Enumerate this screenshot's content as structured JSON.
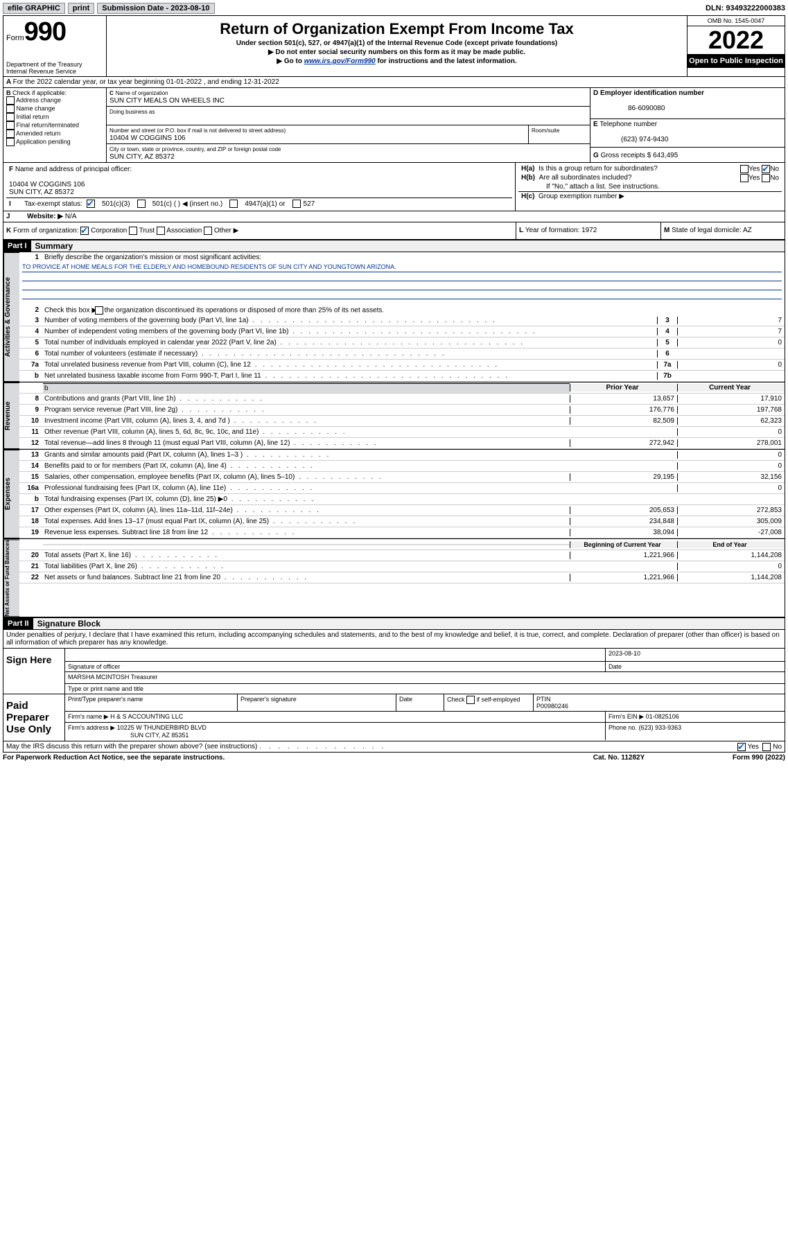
{
  "topbar": {
    "efile": "efile GRAPHIC",
    "print": "print",
    "submission_label": "Submission Date - 2023-08-10",
    "dln": "DLN: 93493222000383"
  },
  "header": {
    "form_prefix": "Form",
    "form_number": "990",
    "dept": "Department of the Treasury",
    "irs": "Internal Revenue Service",
    "title": "Return of Organization Exempt From Income Tax",
    "sub1": "Under section 501(c), 527, or 4947(a)(1) of the Internal Revenue Code (except private foundations)",
    "sub2": "Do not enter social security numbers on this form as it may be made public.",
    "sub3_pre": "Go to ",
    "sub3_link": "www.irs.gov/Form990",
    "sub3_post": " for instructions and the latest information.",
    "omb": "OMB No. 1545-0047",
    "year": "2022",
    "open_public": "Open to Public Inspection"
  },
  "A": {
    "text": "For the 2022 calendar year, or tax year beginning 01-01-2022    , and ending 12-31-2022"
  },
  "B": {
    "title": "Check if applicable:",
    "opts": [
      "Address change",
      "Name change",
      "Initial return",
      "Final return/terminated",
      "Amended return",
      "Application pending"
    ]
  },
  "C": {
    "name_label": "Name of organization",
    "name": "SUN CITY MEALS ON WHEELS INC",
    "dba_label": "Doing business as",
    "addr_label": "Number and street (or P.O. box if mail is not delivered to street address)",
    "room_label": "Room/suite",
    "addr": "10404 W COGGINS 106",
    "city_label": "City or town, state or province, country, and ZIP or foreign postal code",
    "city": "SUN CITY, AZ  85372"
  },
  "D": {
    "label": "Employer identification number",
    "value": "86-6090080"
  },
  "E": {
    "label": "Telephone number",
    "value": "(623) 974-9430"
  },
  "G": {
    "label": "Gross receipts $",
    "value": "643,495"
  },
  "F": {
    "label": "Name and address of principal officer:",
    "addr1": "10404 W COGGINS 106",
    "addr2": "SUN CITY, AZ  85372"
  },
  "H": {
    "a": "Is this a group return for subordinates?",
    "b": "Are all subordinates included?",
    "b_note": "If \"No,\" attach a list. See instructions.",
    "c": "Group exemption number ▶"
  },
  "I": {
    "label": "Tax-exempt status:",
    "opts": [
      "501(c)(3)",
      "501(c) (   ) ◀ (insert no.)",
      "4947(a)(1) or",
      "527"
    ]
  },
  "J": {
    "label": "Website: ▶",
    "value": "N/A"
  },
  "K": {
    "label": "Form of organization:",
    "opts": [
      "Corporation",
      "Trust",
      "Association",
      "Other ▶"
    ]
  },
  "L": {
    "label": "Year of formation:",
    "value": "1972"
  },
  "M": {
    "label": "State of legal domicile:",
    "value": "AZ"
  },
  "part1": {
    "header": "Part I",
    "title": "Summary",
    "line1_label": "Briefly describe the organization's mission or most significant activities:",
    "mission": "TO PROVICE AT HOME MEALS FOR THE ELDERLY AND HOMEBOUND RESIDENTS OF SUN CITY AND YOUNGTOWN ARIZONA.",
    "line2": "Check this box ▶        if the organization discontinued its operations or disposed of more than 25% of its net assets.",
    "lines_gov": [
      {
        "n": "3",
        "t": "Number of voting members of the governing body (Part VI, line 1a)",
        "b": "3",
        "v": "7"
      },
      {
        "n": "4",
        "t": "Number of independent voting members of the governing body (Part VI, line 1b)",
        "b": "4",
        "v": "7"
      },
      {
        "n": "5",
        "t": "Total number of individuals employed in calendar year 2022 (Part V, line 2a)",
        "b": "5",
        "v": "0"
      },
      {
        "n": "6",
        "t": "Total number of volunteers (estimate if necessary)",
        "b": "6",
        "v": ""
      },
      {
        "n": "7a",
        "t": "Total unrelated business revenue from Part VIII, column (C), line 12",
        "b": "7a",
        "v": "0"
      },
      {
        "n": "b",
        "t": "Net unrelated business taxable income from Form 990-T, Part I, line 11",
        "b": "7b",
        "v": ""
      }
    ],
    "col_prior": "Prior Year",
    "col_current": "Current Year",
    "revenue": [
      {
        "n": "8",
        "t": "Contributions and grants (Part VIII, line 1h)",
        "p": "13,657",
        "c": "17,910"
      },
      {
        "n": "9",
        "t": "Program service revenue (Part VIII, line 2g)",
        "p": "176,776",
        "c": "197,768"
      },
      {
        "n": "10",
        "t": "Investment income (Part VIII, column (A), lines 3, 4, and 7d )",
        "p": "82,509",
        "c": "62,323"
      },
      {
        "n": "11",
        "t": "Other revenue (Part VIII, column (A), lines 5, 6d, 8c, 9c, 10c, and 11e)",
        "p": "",
        "c": "0"
      },
      {
        "n": "12",
        "t": "Total revenue—add lines 8 through 11 (must equal Part VIII, column (A), line 12)",
        "p": "272,942",
        "c": "278,001"
      }
    ],
    "expenses": [
      {
        "n": "13",
        "t": "Grants and similar amounts paid (Part IX, column (A), lines 1–3 )",
        "p": "",
        "c": "0"
      },
      {
        "n": "14",
        "t": "Benefits paid to or for members (Part IX, column (A), line 4)",
        "p": "",
        "c": "0"
      },
      {
        "n": "15",
        "t": "Salaries, other compensation, employee benefits (Part IX, column (A), lines 5–10)",
        "p": "29,195",
        "c": "32,156"
      },
      {
        "n": "16a",
        "t": "Professional fundraising fees (Part IX, column (A), line 11e)",
        "p": "",
        "c": "0"
      },
      {
        "n": "b",
        "t": "Total fundraising expenses (Part IX, column (D), line 25) ▶0",
        "p": "",
        "c": ""
      },
      {
        "n": "17",
        "t": "Other expenses (Part IX, column (A), lines 11a–11d, 11f–24e)",
        "p": "205,653",
        "c": "272,853"
      },
      {
        "n": "18",
        "t": "Total expenses. Add lines 13–17 (must equal Part IX, column (A), line 25)",
        "p": "234,848",
        "c": "305,009"
      },
      {
        "n": "19",
        "t": "Revenue less expenses. Subtract line 18 from line 12",
        "p": "38,094",
        "c": "-27,008"
      }
    ],
    "col_begin": "Beginning of Current Year",
    "col_end": "End of Year",
    "netassets": [
      {
        "n": "20",
        "t": "Total assets (Part X, line 16)",
        "p": "1,221,966",
        "c": "1,144,208"
      },
      {
        "n": "21",
        "t": "Total liabilities (Part X, line 26)",
        "p": "",
        "c": "0"
      },
      {
        "n": "22",
        "t": "Net assets or fund balances. Subtract line 21 from line 20",
        "p": "1,221,966",
        "c": "1,144,208"
      }
    ]
  },
  "vert": {
    "gov": "Activities & Governance",
    "rev": "Revenue",
    "exp": "Expenses",
    "net": "Net Assets or Fund Balances"
  },
  "part2": {
    "header": "Part II",
    "title": "Signature Block",
    "jurat": "Under penalties of perjury, I declare that I have examined this return, including accompanying schedules and statements, and to the best of my knowledge and belief, it is true, correct, and complete. Declaration of preparer (other than officer) is based on all information of which preparer has any knowledge.",
    "sign_here": "Sign Here",
    "sig_officer": "Signature of officer",
    "sig_date": "Date",
    "sig_date_val": "2023-08-10",
    "officer_name": "MARSHA MCINTOSH Treasurer",
    "type_name": "Type or print name and title",
    "paid": "Paid Preparer Use Only",
    "prep_name_label": "Print/Type preparer's name",
    "prep_sig_label": "Preparer's signature",
    "date_label": "Date",
    "check_if": "Check         if self-employed",
    "ptin_label": "PTIN",
    "ptin": "P00980246",
    "firm_name_label": "Firm's name    ▶",
    "firm_name": "H & S ACCOUNTING LLC",
    "firm_ein_label": "Firm's EIN ▶",
    "firm_ein": "01-0825106",
    "firm_addr_label": "Firm's address ▶",
    "firm_addr1": "10225 W THUNDERBIRD BLVD",
    "firm_addr2": "SUN CITY, AZ  85351",
    "phone_label": "Phone no.",
    "phone": "(623) 933-9363",
    "may_irs": "May the IRS discuss this return with the preparer shown above? (see instructions)"
  },
  "footer": {
    "paperwork": "For Paperwork Reduction Act Notice, see the separate instructions.",
    "cat": "Cat. No. 11282Y",
    "form": "Form 990 (2022)"
  }
}
